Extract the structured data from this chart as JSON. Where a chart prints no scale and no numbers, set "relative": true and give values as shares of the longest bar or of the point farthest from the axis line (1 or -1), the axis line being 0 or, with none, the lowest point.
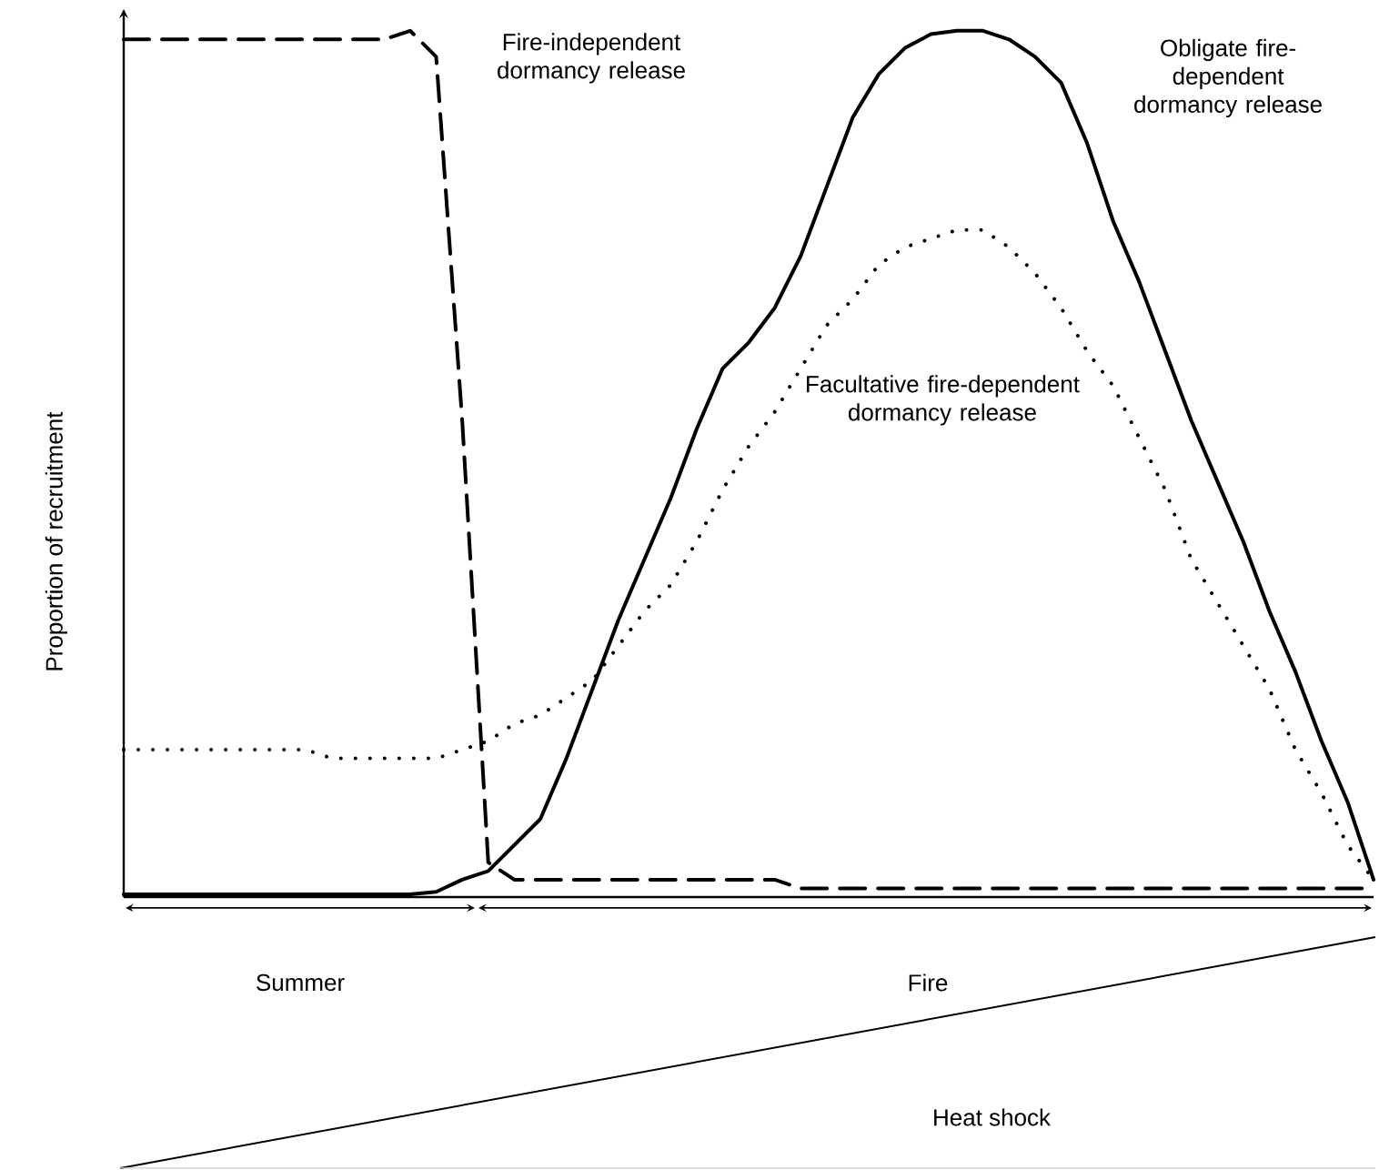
{
  "chart_data": {
    "type": "line",
    "relative": true,
    "ylabel": "Proportion of recruitment",
    "categories": [
      null,
      null,
      null,
      null,
      null,
      null,
      null,
      null,
      null,
      null,
      null,
      null,
      null,
      null,
      null,
      null,
      null,
      null,
      null,
      null,
      null,
      null,
      null,
      null,
      null,
      null,
      null,
      null,
      null,
      null,
      null,
      null,
      null,
      null,
      null,
      null,
      null,
      null,
      null,
      null,
      null,
      null,
      null,
      null,
      null,
      null,
      null,
      null,
      null
    ],
    "series": [
      {
        "name": "Fire-independent dormancy release",
        "color": "#000000",
        "line_style": "dashed",
        "values": [
          0.99,
          0.99,
          0.99,
          0.99,
          0.99,
          0.99,
          0.99,
          0.99,
          0.99,
          0.99,
          0.99,
          1.0,
          0.97,
          0.55,
          0.04,
          0.02,
          0.02,
          0.02,
          0.02,
          0.02,
          0.02,
          0.02,
          0.02,
          0.02,
          0.02,
          0.02,
          0.01,
          0.01,
          0.01,
          0.01,
          0.01,
          0.01,
          0.01,
          0.01,
          0.01,
          0.01,
          0.01,
          0.01,
          0.01,
          0.01,
          0.01,
          0.01,
          0.01,
          0.01,
          0.01,
          0.01,
          0.01,
          0.01,
          0.01
        ]
      },
      {
        "name": "Obligate fire-dependent dormancy release",
        "color": "#000000",
        "line_style": "solid",
        "values": [
          0.003,
          0.003,
          0.003,
          0.003,
          0.003,
          0.003,
          0.003,
          0.003,
          0.003,
          0.003,
          0.003,
          0.003,
          0.006,
          0.02,
          0.03,
          0.06,
          0.09,
          0.16,
          0.24,
          0.32,
          0.39,
          0.46,
          0.54,
          0.61,
          0.64,
          0.68,
          0.74,
          0.82,
          0.9,
          0.95,
          0.98,
          0.996,
          1.0,
          1.0,
          0.99,
          0.97,
          0.94,
          0.87,
          0.78,
          0.71,
          0.63,
          0.55,
          0.48,
          0.41,
          0.33,
          0.26,
          0.18,
          0.11,
          0.02
        ]
      },
      {
        "name": "Facultative fire-dependent dormancy release",
        "color": "#000000",
        "line_style": "dotted",
        "values": [
          0.17,
          0.17,
          0.17,
          0.17,
          0.17,
          0.17,
          0.17,
          0.17,
          0.16,
          0.16,
          0.16,
          0.16,
          0.16,
          0.17,
          0.18,
          0.2,
          0.21,
          0.23,
          0.25,
          0.29,
          0.33,
          0.36,
          0.41,
          0.47,
          0.52,
          0.56,
          0.61,
          0.66,
          0.69,
          0.73,
          0.75,
          0.76,
          0.77,
          0.77,
          0.75,
          0.72,
          0.68,
          0.63,
          0.59,
          0.53,
          0.47,
          0.39,
          0.34,
          0.29,
          0.24,
          0.17,
          0.12,
          0.06,
          0.02
        ]
      }
    ],
    "annotations": [
      "Summer",
      "Fire",
      "Heat shock"
    ]
  }
}
